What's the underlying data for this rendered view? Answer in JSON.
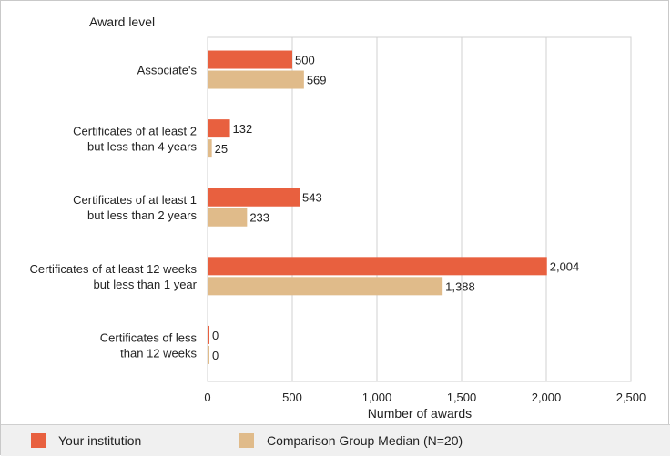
{
  "colors": {
    "primary": "#e8603f",
    "comparison": "#e0bb8a",
    "grid": "#d0d0d0",
    "text": "#222222"
  },
  "legend": {
    "primary_label": "Your institution",
    "comparison_label": "Comparison Group Median (N=20)"
  },
  "chart_data": {
    "type": "bar",
    "orientation": "horizontal",
    "title": "",
    "ylabel": "Award level",
    "xlabel": "Number of awards",
    "xlim": [
      0,
      2500
    ],
    "xticks": [
      0,
      500,
      1000,
      1500,
      2000,
      2500
    ],
    "xtick_labels": [
      "0",
      "500",
      "1,000",
      "1,500",
      "2,000",
      "2,500"
    ],
    "grid": true,
    "legend_position": "bottom",
    "categories": [
      [
        "Associate's"
      ],
      [
        "Certificates of at least 2",
        "but less than 4 years"
      ],
      [
        "Certificates of at least 1",
        "but  less than 2 years"
      ],
      [
        "Certificates of at least 12 weeks",
        "but less than 1 year"
      ],
      [
        "Certificates of less",
        "than 12 weeks"
      ]
    ],
    "series": [
      {
        "name": "Your institution",
        "values": [
          500,
          132,
          543,
          2004,
          0
        ],
        "labels": [
          "500",
          "132",
          "543",
          "2,004",
          "0"
        ]
      },
      {
        "name": "Comparison Group Median (N=20)",
        "values": [
          569,
          25,
          233,
          1388,
          0
        ],
        "labels": [
          "569",
          "25",
          "233",
          "1,388",
          "0"
        ]
      }
    ]
  }
}
